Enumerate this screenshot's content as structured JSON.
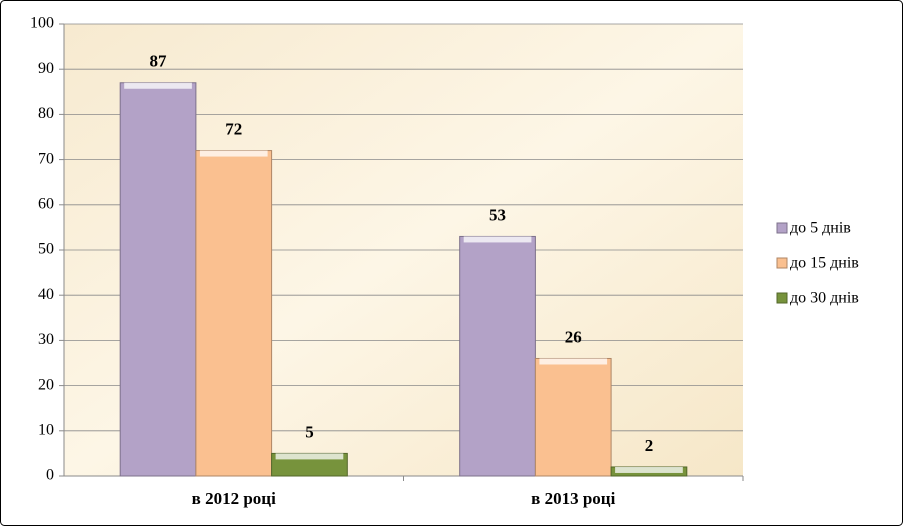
{
  "chart_data": {
    "type": "bar",
    "categories": [
      "в 2012 році",
      "в 2013 році"
    ],
    "series": [
      {
        "name": "до 5 днів",
        "color": "#b3a2c7",
        "values": [
          87,
          53
        ]
      },
      {
        "name": "до 15 днів",
        "color": "#fac090",
        "values": [
          72,
          26
        ]
      },
      {
        "name": "до 30 днів",
        "color": "#77933c",
        "values": [
          5,
          2
        ]
      }
    ],
    "ylim": [
      0,
      100
    ],
    "yticks": [
      0,
      10,
      20,
      30,
      40,
      50,
      60,
      70,
      80,
      90,
      100
    ],
    "grid": true,
    "legend": "right"
  }
}
